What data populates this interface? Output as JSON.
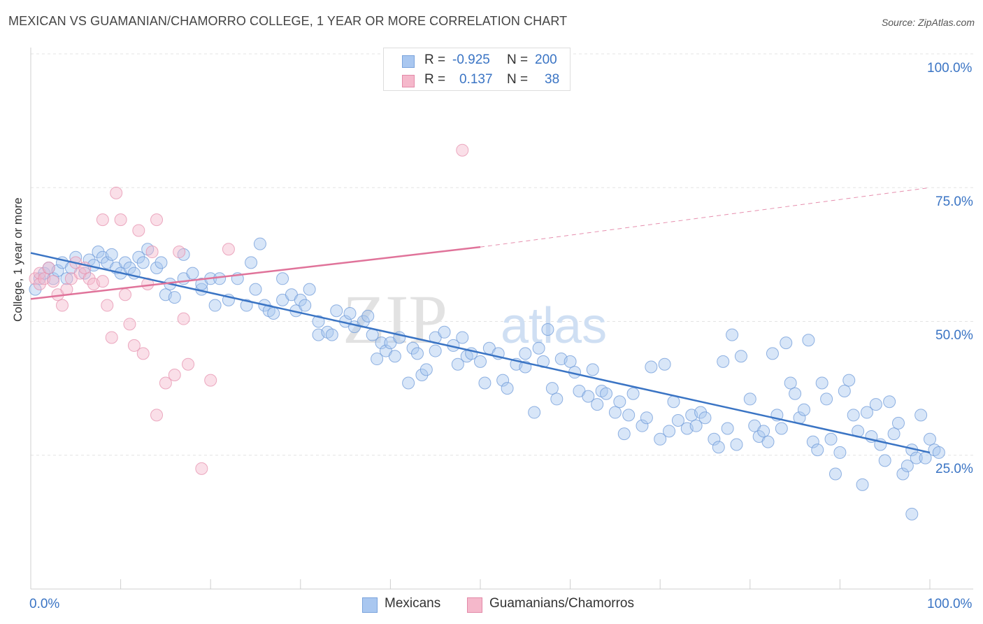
{
  "header": {
    "title": "MEXICAN VS GUAMANIAN/CHAMORRO COLLEGE, 1 YEAR OR MORE CORRELATION CHART",
    "source": "Source: ZipAtlas.com"
  },
  "watermark": {
    "zip": "ZIP",
    "atlas": "atlas"
  },
  "colors": {
    "blue": "#3a74c4",
    "blue_fill": "#a9c7f0",
    "pink": "#e0739a",
    "pink_fill": "#f5b8cb"
  },
  "legend": {
    "rows": [
      {
        "r_label": "R =",
        "r_value": "-0.925",
        "n_label": "N =",
        "n_value": "200"
      },
      {
        "r_label": "R =",
        "r_value": "0.137",
        "n_label": "N =",
        "n_value": "38"
      }
    ]
  },
  "bottom_legend": {
    "series1": "Mexicans",
    "series2": "Guamanians/Chamorros"
  },
  "axes": {
    "ylabel": "College, 1 year or more",
    "x_min_label": "0.0%",
    "x_max_label": "100.0%",
    "y_tick_labels": [
      "100.0%",
      "75.0%",
      "50.0%",
      "25.0%"
    ]
  },
  "chart_data": {
    "type": "scatter",
    "title": "MEXICAN VS GUAMANIAN/CHAMORRO COLLEGE, 1 YEAR OR MORE CORRELATION CHART",
    "xlabel": "",
    "ylabel": "College, 1 year or more",
    "xlim": [
      0,
      100
    ],
    "ylim": [
      0,
      103
    ],
    "series": [
      {
        "name": "Mexicans",
        "r": -0.925,
        "n": 200,
        "trend": {
          "x": [
            0,
            100
          ],
          "y": [
            62.8,
            25.5
          ]
        },
        "points": [
          [
            0.5,
            56
          ],
          [
            1,
            58
          ],
          [
            1.5,
            59
          ],
          [
            2,
            60
          ],
          [
            2.5,
            58
          ],
          [
            3,
            59.5
          ],
          [
            3.5,
            61
          ],
          [
            4,
            58
          ],
          [
            4.5,
            60
          ],
          [
            5,
            62
          ],
          [
            6,
            59
          ],
          [
            6.5,
            61.5
          ],
          [
            7,
            60.5
          ],
          [
            7.5,
            63
          ],
          [
            8,
            62
          ],
          [
            8.5,
            61
          ],
          [
            9,
            62.5
          ],
          [
            9.5,
            60
          ],
          [
            10,
            59
          ],
          [
            10.5,
            61
          ],
          [
            11,
            60
          ],
          [
            11.5,
            59
          ],
          [
            12,
            62
          ],
          [
            12.5,
            61
          ],
          [
            13,
            63.5
          ],
          [
            14,
            60
          ],
          [
            14.5,
            61
          ],
          [
            15,
            55
          ],
          [
            15.5,
            57
          ],
          [
            16,
            54.5
          ],
          [
            17,
            62.5
          ],
          [
            17,
            58
          ],
          [
            18,
            59
          ],
          [
            19,
            56
          ],
          [
            19,
            57
          ],
          [
            20,
            58
          ],
          [
            20.5,
            53
          ],
          [
            21,
            58
          ],
          [
            22,
            54
          ],
          [
            23,
            58
          ],
          [
            24,
            53
          ],
          [
            24.5,
            61
          ],
          [
            25,
            56
          ],
          [
            25.5,
            64.5
          ],
          [
            26,
            53
          ],
          [
            26.5,
            52
          ],
          [
            27,
            51.5
          ],
          [
            28,
            54
          ],
          [
            28,
            58
          ],
          [
            29,
            55
          ],
          [
            29.5,
            52
          ],
          [
            30,
            54
          ],
          [
            30.5,
            53
          ],
          [
            31,
            56
          ],
          [
            32,
            50
          ],
          [
            32,
            47.5
          ],
          [
            33,
            48
          ],
          [
            33.5,
            47.5
          ],
          [
            34,
            52
          ],
          [
            35,
            50
          ],
          [
            35.5,
            51.5
          ],
          [
            36,
            49
          ],
          [
            37,
            50
          ],
          [
            37.5,
            51
          ],
          [
            38,
            47.5
          ],
          [
            38.5,
            43
          ],
          [
            39,
            46
          ],
          [
            39.5,
            44.5
          ],
          [
            40,
            46
          ],
          [
            40.5,
            43.5
          ],
          [
            41,
            47
          ],
          [
            42,
            38.5
          ],
          [
            42.5,
            45
          ],
          [
            43,
            44
          ],
          [
            43.5,
            40
          ],
          [
            44,
            41
          ],
          [
            45,
            47
          ],
          [
            45,
            44.5
          ],
          [
            46,
            48
          ],
          [
            47,
            45.5
          ],
          [
            47.5,
            42
          ],
          [
            48,
            47
          ],
          [
            48.5,
            43.5
          ],
          [
            49,
            44
          ],
          [
            50,
            42.5
          ],
          [
            50.5,
            38.5
          ],
          [
            51,
            45
          ],
          [
            52,
            44
          ],
          [
            52.5,
            39
          ],
          [
            53,
            37.5
          ],
          [
            54,
            42
          ],
          [
            55,
            44
          ],
          [
            55,
            41.5
          ],
          [
            56,
            33
          ],
          [
            56.5,
            45
          ],
          [
            57,
            42.5
          ],
          [
            57.5,
            48.5
          ],
          [
            58,
            37.5
          ],
          [
            58.5,
            35.5
          ],
          [
            59,
            43
          ],
          [
            60,
            42.5
          ],
          [
            60.5,
            40.5
          ],
          [
            61,
            37
          ],
          [
            62,
            36
          ],
          [
            62.5,
            41
          ],
          [
            63,
            34.5
          ],
          [
            63.5,
            37
          ],
          [
            64,
            36.5
          ],
          [
            65,
            33
          ],
          [
            65.5,
            35
          ],
          [
            66,
            29
          ],
          [
            66.5,
            32.5
          ],
          [
            67,
            36.5
          ],
          [
            68,
            30.5
          ],
          [
            68.5,
            32
          ],
          [
            69,
            41.5
          ],
          [
            70,
            28
          ],
          [
            70.5,
            42
          ],
          [
            71,
            29.5
          ],
          [
            71.5,
            35
          ],
          [
            72,
            31.5
          ],
          [
            73,
            30
          ],
          [
            73.5,
            32.5
          ],
          [
            74,
            30.5
          ],
          [
            74.5,
            33
          ],
          [
            75,
            32
          ],
          [
            76,
            28
          ],
          [
            76.5,
            26.5
          ],
          [
            77,
            42.5
          ],
          [
            77.5,
            30
          ],
          [
            78,
            47.5
          ],
          [
            78.5,
            27
          ],
          [
            79,
            43.5
          ],
          [
            80,
            35.5
          ],
          [
            80.5,
            30.5
          ],
          [
            81,
            28.5
          ],
          [
            81.5,
            29.5
          ],
          [
            82,
            27.5
          ],
          [
            82.5,
            44
          ],
          [
            83,
            32.5
          ],
          [
            83.5,
            30
          ],
          [
            84,
            46
          ],
          [
            84.5,
            38.5
          ],
          [
            85,
            36.5
          ],
          [
            85.5,
            32
          ],
          [
            86,
            33.5
          ],
          [
            86.5,
            46.5
          ],
          [
            87,
            27.5
          ],
          [
            87.5,
            26
          ],
          [
            88,
            38.5
          ],
          [
            88.5,
            35.5
          ],
          [
            89,
            28
          ],
          [
            89.5,
            21.5
          ],
          [
            90,
            25.5
          ],
          [
            90.5,
            37
          ],
          [
            91,
            39
          ],
          [
            91.5,
            32.5
          ],
          [
            92,
            29.5
          ],
          [
            92.5,
            19.5
          ],
          [
            93,
            33
          ],
          [
            93.5,
            28.5
          ],
          [
            94,
            34.5
          ],
          [
            94.5,
            27
          ],
          [
            95,
            24
          ],
          [
            95.5,
            35
          ],
          [
            96,
            29
          ],
          [
            96.5,
            31
          ],
          [
            97,
            21.5
          ],
          [
            97.5,
            23
          ],
          [
            98,
            14
          ],
          [
            98,
            26
          ],
          [
            98.5,
            24.5
          ],
          [
            99,
            32.5
          ],
          [
            99.5,
            24.5
          ],
          [
            100,
            28
          ],
          [
            100.5,
            26
          ],
          [
            101,
            25.5
          ]
        ]
      },
      {
        "name": "Guamanians/Chamorros",
        "r": 0.137,
        "n": 38,
        "trend": {
          "x": [
            0,
            50
          ],
          "y": [
            54.2,
            63.9
          ]
        },
        "trend_dashed": {
          "x": [
            50,
            100
          ],
          "y": [
            63.9,
            75
          ]
        },
        "points": [
          [
            0.5,
            58
          ],
          [
            1,
            57
          ],
          [
            1,
            59
          ],
          [
            1.5,
            58
          ],
          [
            2,
            60
          ],
          [
            2.5,
            57.5
          ],
          [
            3,
            55
          ],
          [
            3.5,
            53
          ],
          [
            4,
            56
          ],
          [
            4.5,
            58
          ],
          [
            5,
            61
          ],
          [
            5.5,
            59
          ],
          [
            6,
            60
          ],
          [
            6.5,
            58
          ],
          [
            7,
            57
          ],
          [
            8,
            69
          ],
          [
            8,
            57.5
          ],
          [
            8.5,
            53
          ],
          [
            9,
            47
          ],
          [
            9.5,
            74
          ],
          [
            10,
            69
          ],
          [
            10.5,
            55
          ],
          [
            11,
            49.5
          ],
          [
            11.5,
            45.5
          ],
          [
            12,
            67
          ],
          [
            12.5,
            44
          ],
          [
            13,
            57
          ],
          [
            13.5,
            63
          ],
          [
            14,
            32.5
          ],
          [
            14,
            69
          ],
          [
            15,
            38.5
          ],
          [
            16,
            40
          ],
          [
            16.5,
            63
          ],
          [
            17,
            50.5
          ],
          [
            17.5,
            42
          ],
          [
            19,
            22.5
          ],
          [
            20,
            39
          ],
          [
            22,
            63.5
          ],
          [
            48,
            82
          ]
        ]
      }
    ]
  }
}
